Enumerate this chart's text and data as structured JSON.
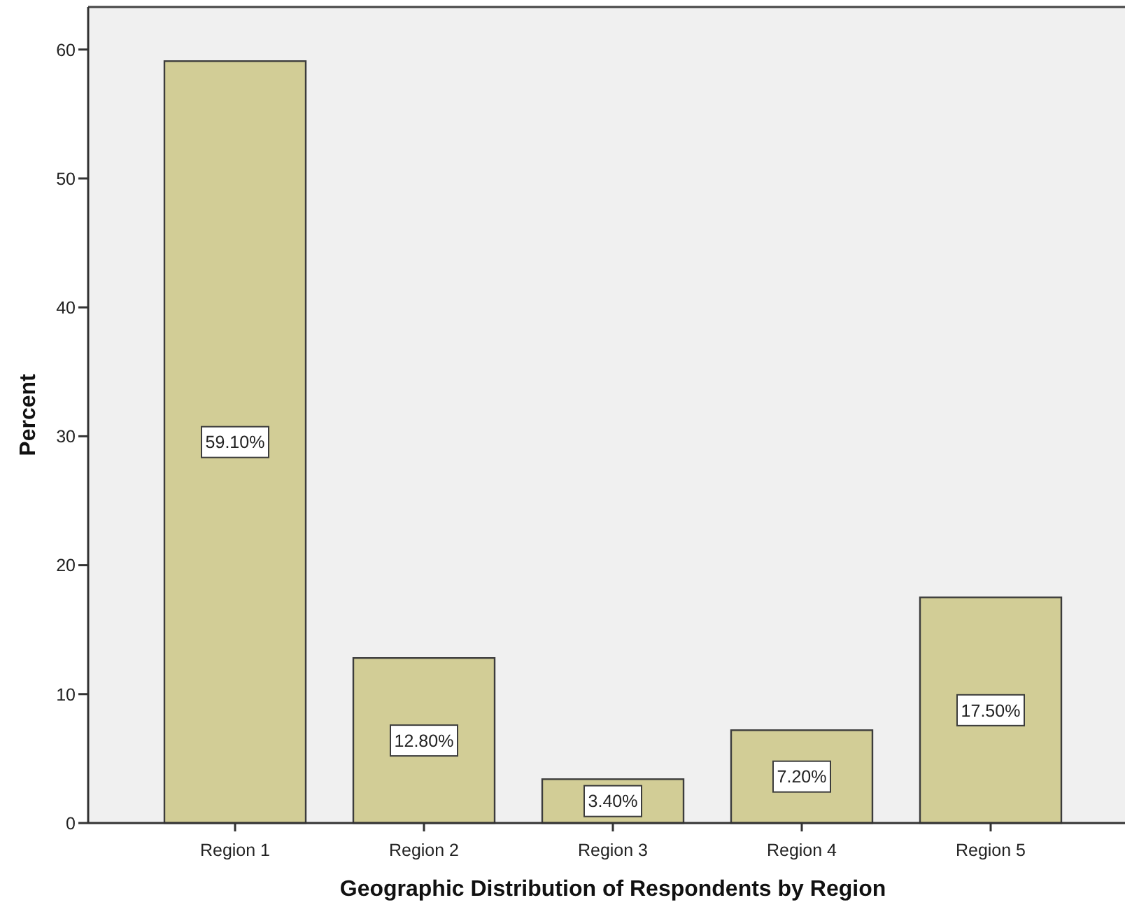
{
  "chart_data": {
    "type": "bar",
    "xlabel": "Geographic Distribution of Respondents by Region",
    "ylabel": "Percent",
    "categories": [
      "Region 1",
      "Region 2",
      "Region 3",
      "Region 4",
      "Region 5"
    ],
    "values": [
      59.1,
      12.8,
      3.4,
      7.2,
      17.5
    ],
    "color": "#d2cd96",
    "value_labels": [
      "59.10%",
      "12.80%",
      "3.40%",
      "7.20%",
      "17.50%"
    ],
    "ylim": [
      0,
      63.3
    ],
    "yticks": [
      0,
      10,
      20,
      30,
      40,
      50,
      60
    ]
  }
}
